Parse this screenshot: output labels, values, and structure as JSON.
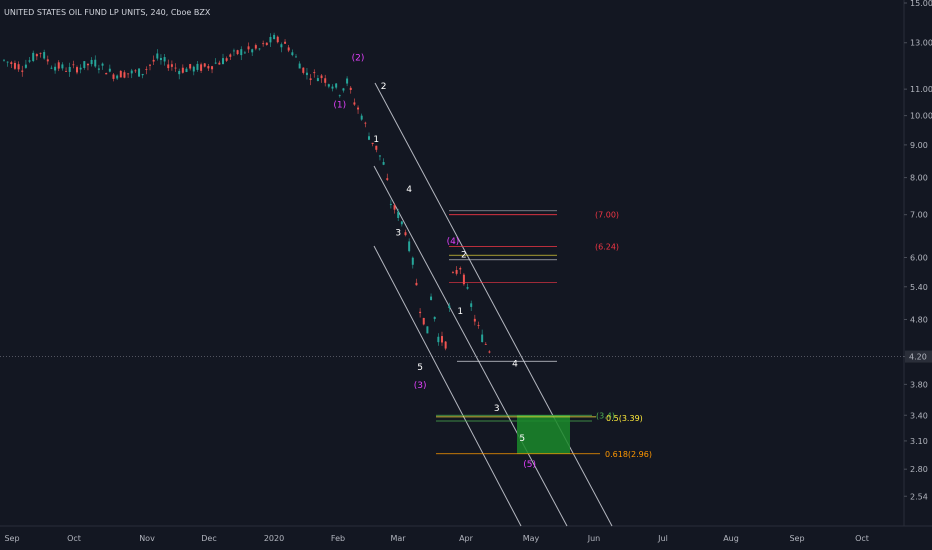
{
  "header": {
    "title": "UNITED STATES OIL FUND LP UNITS, 240, Cboe BZX"
  },
  "colors": {
    "background": "#131722",
    "axis_text": "#b2b5be",
    "candle_up": "#26a69a",
    "candle_down": "#ef5350",
    "channel": "#d1d4dc",
    "wave_white": "#ffffff",
    "wave_pink": "#e040fb",
    "level_red": "#f23645",
    "level_yellow": "#ffeb3b",
    "level_green": "#4caf50",
    "level_orange": "#ff9800",
    "target_box": "#1b8a2a"
  },
  "chart_data": {
    "type": "candlestick",
    "scale": "log",
    "ylim": [
      2.4,
      15.0
    ],
    "y_ticks": [
      "15.00",
      "13.00",
      "11.00",
      "10.00",
      "9.00",
      "8.00",
      "7.00",
      "6.00",
      "5.40",
      "4.80",
      "4.20",
      "3.80",
      "3.40",
      "3.10",
      "2.80",
      "2.54"
    ],
    "y_tick_values": [
      15.0,
      13.0,
      11.0,
      10.0,
      9.0,
      8.0,
      7.0,
      6.0,
      5.4,
      4.8,
      4.2,
      3.8,
      3.4,
      3.1,
      2.8,
      2.54
    ],
    "x_ticks": [
      "Sep",
      "Oct",
      "Nov",
      "Dec",
      "2020",
      "Feb",
      "Mar",
      "Apr",
      "May",
      "Jun",
      "Jul",
      "Aug",
      "Sep",
      "Oct"
    ],
    "current_price": {
      "label": "4.20",
      "value": 4.2
    },
    "price_path": [
      [
        0,
        12.2
      ],
      [
        5,
        11.9
      ],
      [
        10,
        12.6
      ],
      [
        13,
        12.0
      ],
      [
        18,
        11.8
      ],
      [
        25,
        12.1
      ],
      [
        30,
        11.6
      ],
      [
        38,
        11.7
      ],
      [
        42,
        12.3
      ],
      [
        48,
        11.8
      ],
      [
        55,
        11.9
      ],
      [
        60,
        12.2
      ],
      [
        65,
        12.6
      ],
      [
        70,
        12.7
      ],
      [
        74,
        13.2
      ],
      [
        78,
        12.8
      ],
      [
        80,
        12.3
      ],
      [
        83,
        11.6
      ],
      [
        87,
        11.5
      ],
      [
        90,
        11.2
      ],
      [
        92,
        10.9
      ],
      [
        94,
        11.3
      ],
      [
        96,
        10.5
      ],
      [
        98,
        10.0
      ],
      [
        100,
        9.3
      ],
      [
        102,
        8.9
      ],
      [
        104,
        8.4
      ],
      [
        106,
        7.3
      ],
      [
        108,
        7.0
      ],
      [
        110,
        6.6
      ],
      [
        112,
        5.9
      ],
      [
        114,
        5.0
      ],
      [
        116,
        4.6
      ],
      [
        117,
        5.2
      ],
      [
        119,
        4.5
      ],
      [
        121,
        4.4
      ],
      [
        123,
        5.6
      ],
      [
        125,
        5.8
      ],
      [
        127,
        5.3
      ],
      [
        129,
        4.8
      ],
      [
        131,
        4.5
      ],
      [
        133,
        4.3
      ],
      [
        134,
        4.25
      ]
    ],
    "wave_labels": [
      {
        "text": "(2)",
        "x": 97,
        "y": 12.2,
        "color": "pink"
      },
      {
        "text": "(1)",
        "x": 92,
        "y": 10.3,
        "color": "pink"
      },
      {
        "text": "2",
        "x": 104,
        "y": 11.0,
        "color": "white"
      },
      {
        "text": "1",
        "x": 102,
        "y": 9.1,
        "color": "white"
      },
      {
        "text": "4",
        "x": 111,
        "y": 7.6,
        "color": "white"
      },
      {
        "text": "3",
        "x": 108,
        "y": 6.5,
        "color": "white"
      },
      {
        "text": "(4)",
        "x": 123,
        "y": 6.3,
        "color": "pink"
      },
      {
        "text": "2",
        "x": 126,
        "y": 6.0,
        "color": "white"
      },
      {
        "text": "1",
        "x": 125,
        "y": 4.9,
        "color": "white"
      },
      {
        "text": "5",
        "x": 114,
        "y": 4.0,
        "color": "white"
      },
      {
        "text": "(3)",
        "x": 114,
        "y": 3.75,
        "color": "pink"
      },
      {
        "text": "4",
        "x": 140,
        "y": 4.05,
        "color": "white"
      },
      {
        "text": "3",
        "x": 135,
        "y": 3.45,
        "color": "white"
      },
      {
        "text": "5",
        "x": 142,
        "y": 3.1,
        "color": "white"
      },
      {
        "text": "(5)",
        "x": 144,
        "y": 2.82,
        "color": "pink"
      }
    ],
    "levels": [
      {
        "label": "(7.00)",
        "value": 7.0,
        "color": "red"
      },
      {
        "label": "(6.24)",
        "value": 6.24,
        "color": "red"
      },
      {
        "label": "(3.4)",
        "value": 3.4,
        "color": "green"
      },
      {
        "label": "0.5(3.39)",
        "value": 3.38,
        "color": "yellow"
      },
      {
        "label": "0.618(2.96)",
        "value": 2.96,
        "color": "orange"
      }
    ],
    "grid": false,
    "legend": "none"
  }
}
